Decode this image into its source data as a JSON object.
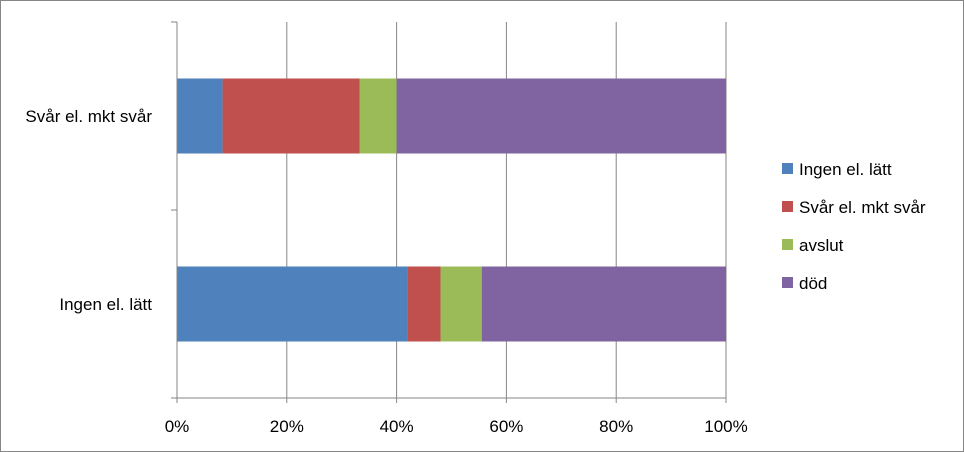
{
  "chart_data": {
    "type": "bar",
    "orientation": "horizontal",
    "stacked": "percent",
    "categories": [
      "Svår el. mkt svår",
      "Ingen el. lätt"
    ],
    "series": [
      {
        "name": "Ingen el. lätt",
        "color": "#4F81BD",
        "values": [
          8.3,
          42
        ]
      },
      {
        "name": "Svår el. mkt svår",
        "color": "#C0504D",
        "values": [
          25,
          6
        ]
      },
      {
        "name": "avslut",
        "color": "#9BBB59",
        "values": [
          6.7,
          7.5
        ]
      },
      {
        "name": "död",
        "color": "#8064A2",
        "values": [
          60,
          44.5
        ]
      }
    ],
    "xlim": [
      0,
      100
    ],
    "xticks": [
      "0%",
      "20%",
      "40%",
      "60%",
      "80%",
      "100%"
    ],
    "grid": true,
    "legend_position": "right",
    "title": "",
    "xlabel": "",
    "ylabel": ""
  }
}
